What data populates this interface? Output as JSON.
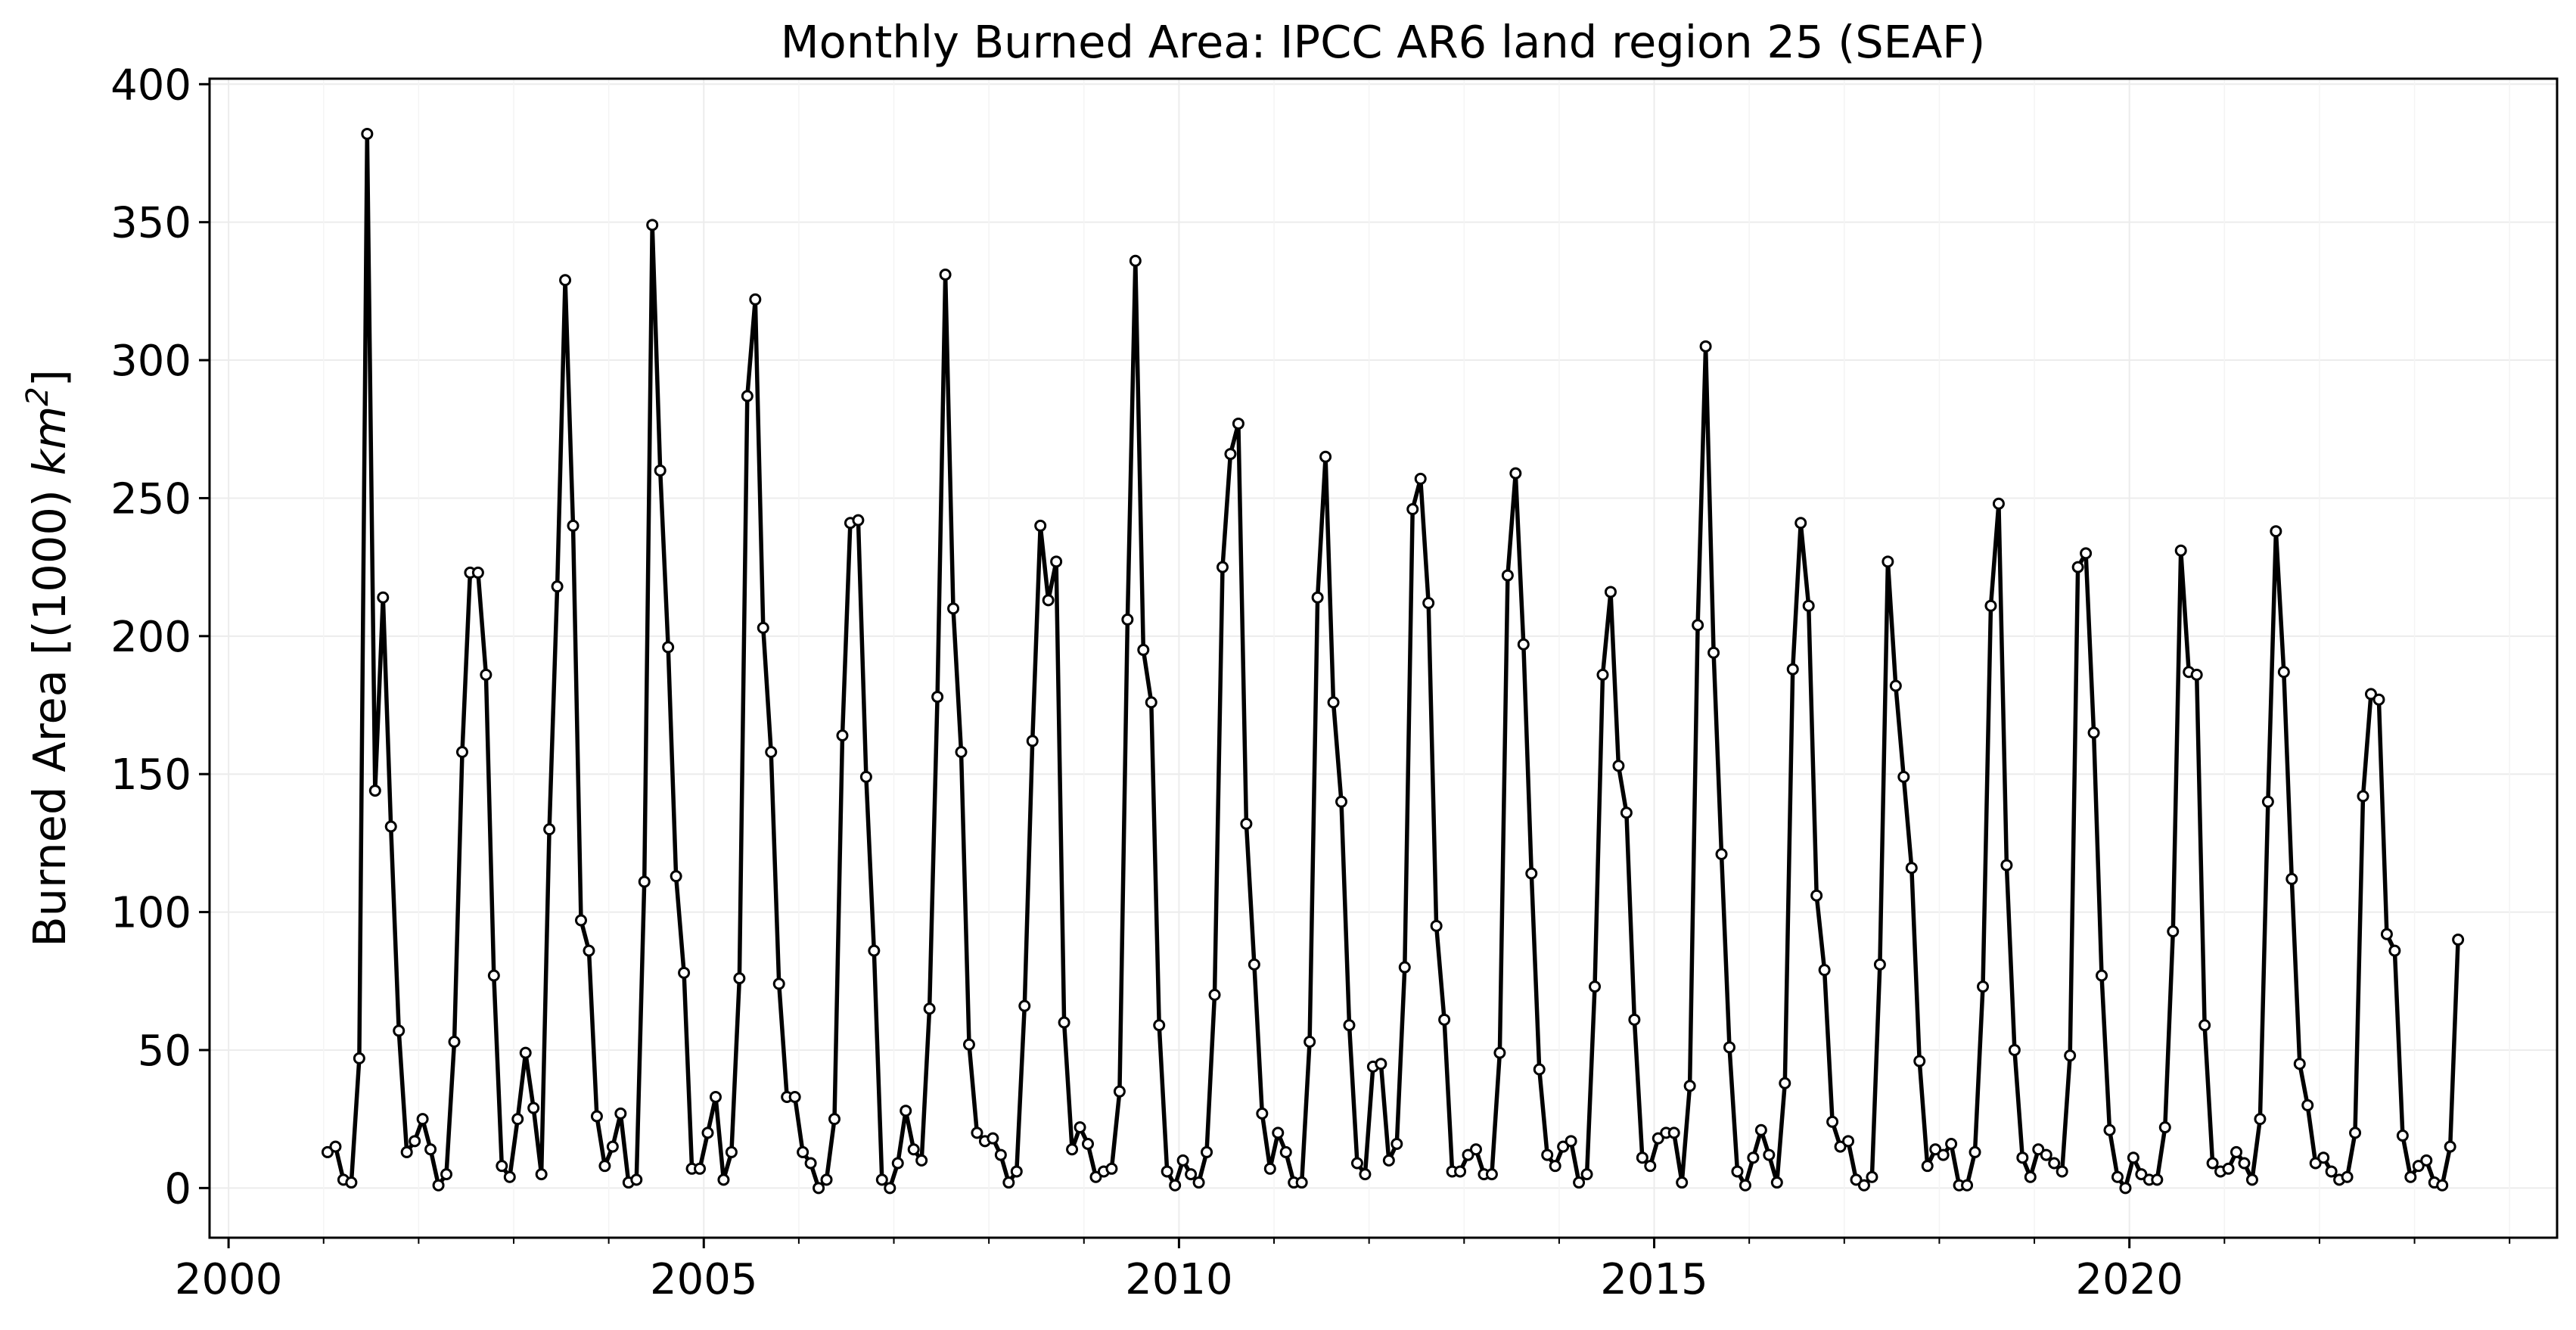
{
  "chart_data": {
    "type": "line",
    "title": "Monthly Burned Area: IPCC AR6 land region 25 (SEAF)",
    "xlabel": "",
    "ylabel": "Burned Area [(1000) km²]",
    "ylabel_parts": {
      "main": "Burned Area [(1000) ",
      "unit": "km",
      "exp": "2",
      "close": "]"
    },
    "xlim": [
      1999.8,
      2024.5
    ],
    "ylim": [
      -18,
      402
    ],
    "x_ticks": [
      2000,
      2005,
      2010,
      2015,
      2020
    ],
    "x_tick_labels": [
      "2000",
      "2005",
      "2010",
      "2015",
      "2020"
    ],
    "y_ticks": [
      0,
      50,
      100,
      150,
      200,
      250,
      300,
      350,
      400
    ],
    "y_tick_labels": [
      "0",
      "50",
      "100",
      "150",
      "200",
      "250",
      "300",
      "350",
      "400"
    ],
    "grid": true,
    "legend": "none",
    "x_start": "2001-01",
    "x_step": "1 month",
    "x_end": "2023-04",
    "series": [
      {
        "line_color": "#000000",
        "marker_fill": "#ffffff",
        "values": [
          13,
          15,
          3,
          2,
          47,
          382,
          144,
          214,
          131,
          57,
          13,
          17,
          25,
          14,
          1,
          5,
          53,
          158,
          223,
          223,
          186,
          77,
          8,
          4,
          25,
          49,
          29,
          5,
          130,
          218,
          329,
          240,
          97,
          86,
          26,
          8,
          15,
          27,
          2,
          3,
          111,
          349,
          260,
          196,
          113,
          78,
          7,
          7,
          20,
          33,
          3,
          13,
          76,
          287,
          322,
          203,
          158,
          74,
          33,
          33,
          13,
          9,
          0,
          3,
          25,
          164,
          241,
          242,
          149,
          86,
          3,
          0,
          9,
          28,
          14,
          10,
          65,
          178,
          331,
          210,
          158,
          52,
          20,
          17,
          18,
          12,
          2,
          6,
          66,
          162,
          240,
          213,
          227,
          60,
          14,
          22,
          16,
          4,
          6,
          7,
          35,
          206,
          336,
          195,
          176,
          59,
          6,
          1,
          10,
          5,
          2,
          13,
          70,
          225,
          266,
          277,
          132,
          81,
          27,
          7,
          20,
          13,
          2,
          2,
          53,
          214,
          265,
          176,
          140,
          59,
          9,
          5,
          44,
          45,
          10,
          16,
          80,
          246,
          257,
          212,
          95,
          61,
          6,
          6,
          12,
          14,
          5,
          5,
          49,
          222,
          259,
          197,
          114,
          43,
          12,
          8,
          15,
          17,
          2,
          5,
          73,
          186,
          216,
          153,
          136,
          61,
          11,
          8,
          18,
          20,
          20,
          2,
          37,
          204,
          305,
          194,
          121,
          51,
          6,
          1,
          11,
          21,
          12,
          2,
          38,
          188,
          241,
          211,
          106,
          79,
          24,
          15,
          17,
          3,
          1,
          4,
          81,
          227,
          182,
          149,
          116,
          46,
          8,
          14,
          12,
          16,
          1,
          1,
          13,
          73,
          211,
          248,
          117,
          50,
          11,
          4,
          14,
          12,
          9,
          6,
          48,
          225,
          230,
          165,
          77,
          21,
          4,
          0,
          11,
          5,
          3,
          3,
          22,
          93,
          231,
          187,
          186,
          59,
          9,
          6,
          7,
          13,
          9,
          3,
          25,
          140,
          238,
          187,
          112,
          45,
          30,
          9,
          11,
          6,
          3,
          4,
          20,
          142,
          179,
          177,
          92,
          86,
          19,
          4,
          8,
          10,
          2,
          1,
          15,
          90
        ]
      }
    ]
  }
}
